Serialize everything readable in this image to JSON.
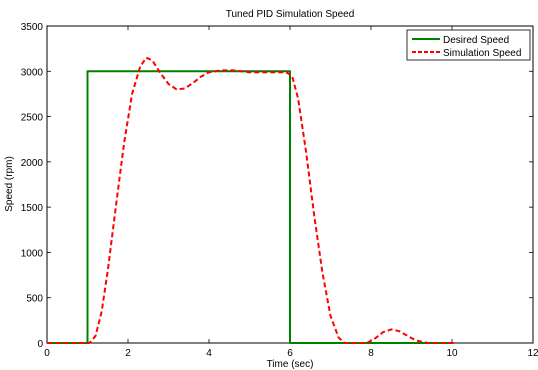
{
  "chart_data": {
    "type": "line",
    "title": "Tuned PID Simulation Speed",
    "xlabel": "Time (sec)",
    "ylabel": "Speed (rpm)",
    "xlim": [
      0,
      12
    ],
    "ylim": [
      0,
      3500
    ],
    "xticks": [
      0,
      2,
      4,
      6,
      8,
      10,
      12
    ],
    "yticks": [
      0,
      500,
      1000,
      1500,
      2000,
      2500,
      3000,
      3500
    ],
    "grid": false,
    "legend_position": "top-right",
    "series": [
      {
        "name": "Desired Speed",
        "color": "#008000",
        "style": "solid",
        "x": [
          0,
          1,
          1,
          6,
          6,
          10
        ],
        "y": [
          0,
          0,
          3000,
          3000,
          0,
          0
        ]
      },
      {
        "name": "Simulation Speed",
        "color": "#ff0000",
        "style": "dashed",
        "x": [
          0,
          1.05,
          1.2,
          1.35,
          1.5,
          1.7,
          1.9,
          2.1,
          2.3,
          2.45,
          2.6,
          2.8,
          3.0,
          3.2,
          3.4,
          3.6,
          3.8,
          4.0,
          4.3,
          4.6,
          5.0,
          5.5,
          5.9,
          6.05,
          6.2,
          6.4,
          6.6,
          6.8,
          7.0,
          7.2,
          7.35,
          7.6,
          7.9,
          8.1,
          8.3,
          8.5,
          8.7,
          8.9,
          9.1,
          9.4,
          10.1
        ],
        "y": [
          0,
          0,
          80,
          350,
          800,
          1500,
          2200,
          2750,
          3050,
          3150,
          3120,
          2980,
          2860,
          2800,
          2810,
          2870,
          2940,
          2990,
          3010,
          3010,
          2990,
          2990,
          2990,
          2950,
          2700,
          2100,
          1400,
          780,
          300,
          60,
          0,
          0,
          0,
          50,
          120,
          150,
          130,
          80,
          30,
          0,
          0
        ]
      }
    ]
  }
}
